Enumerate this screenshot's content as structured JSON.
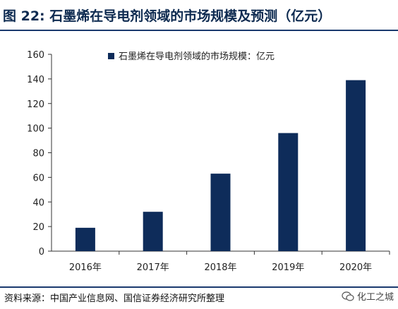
{
  "figure": {
    "title": "图 22: 石墨烯在导电剂领域的市场规模及预测（亿元）",
    "source": "资料来源：中国产业信息网、国信证券经济研究所整理",
    "watermark": "化工之城"
  },
  "colors": {
    "bar": "#0e2c5a",
    "rule": "#1a3a6e",
    "title": "#0d2a50"
  },
  "chart_data": {
    "type": "bar",
    "title": "",
    "xlabel": "",
    "ylabel": "",
    "categories": [
      "2016年",
      "2017年",
      "2018年",
      "2019年",
      "2020年"
    ],
    "series": [
      {
        "name": "石墨烯在导电剂领域的市场规模：亿元",
        "values": [
          19,
          32,
          63,
          96,
          139
        ]
      }
    ],
    "ylim": [
      0,
      160
    ],
    "yticks": [
      0,
      20,
      40,
      60,
      80,
      100,
      120,
      140,
      160
    ],
    "grid": false,
    "legend_position": "top"
  }
}
